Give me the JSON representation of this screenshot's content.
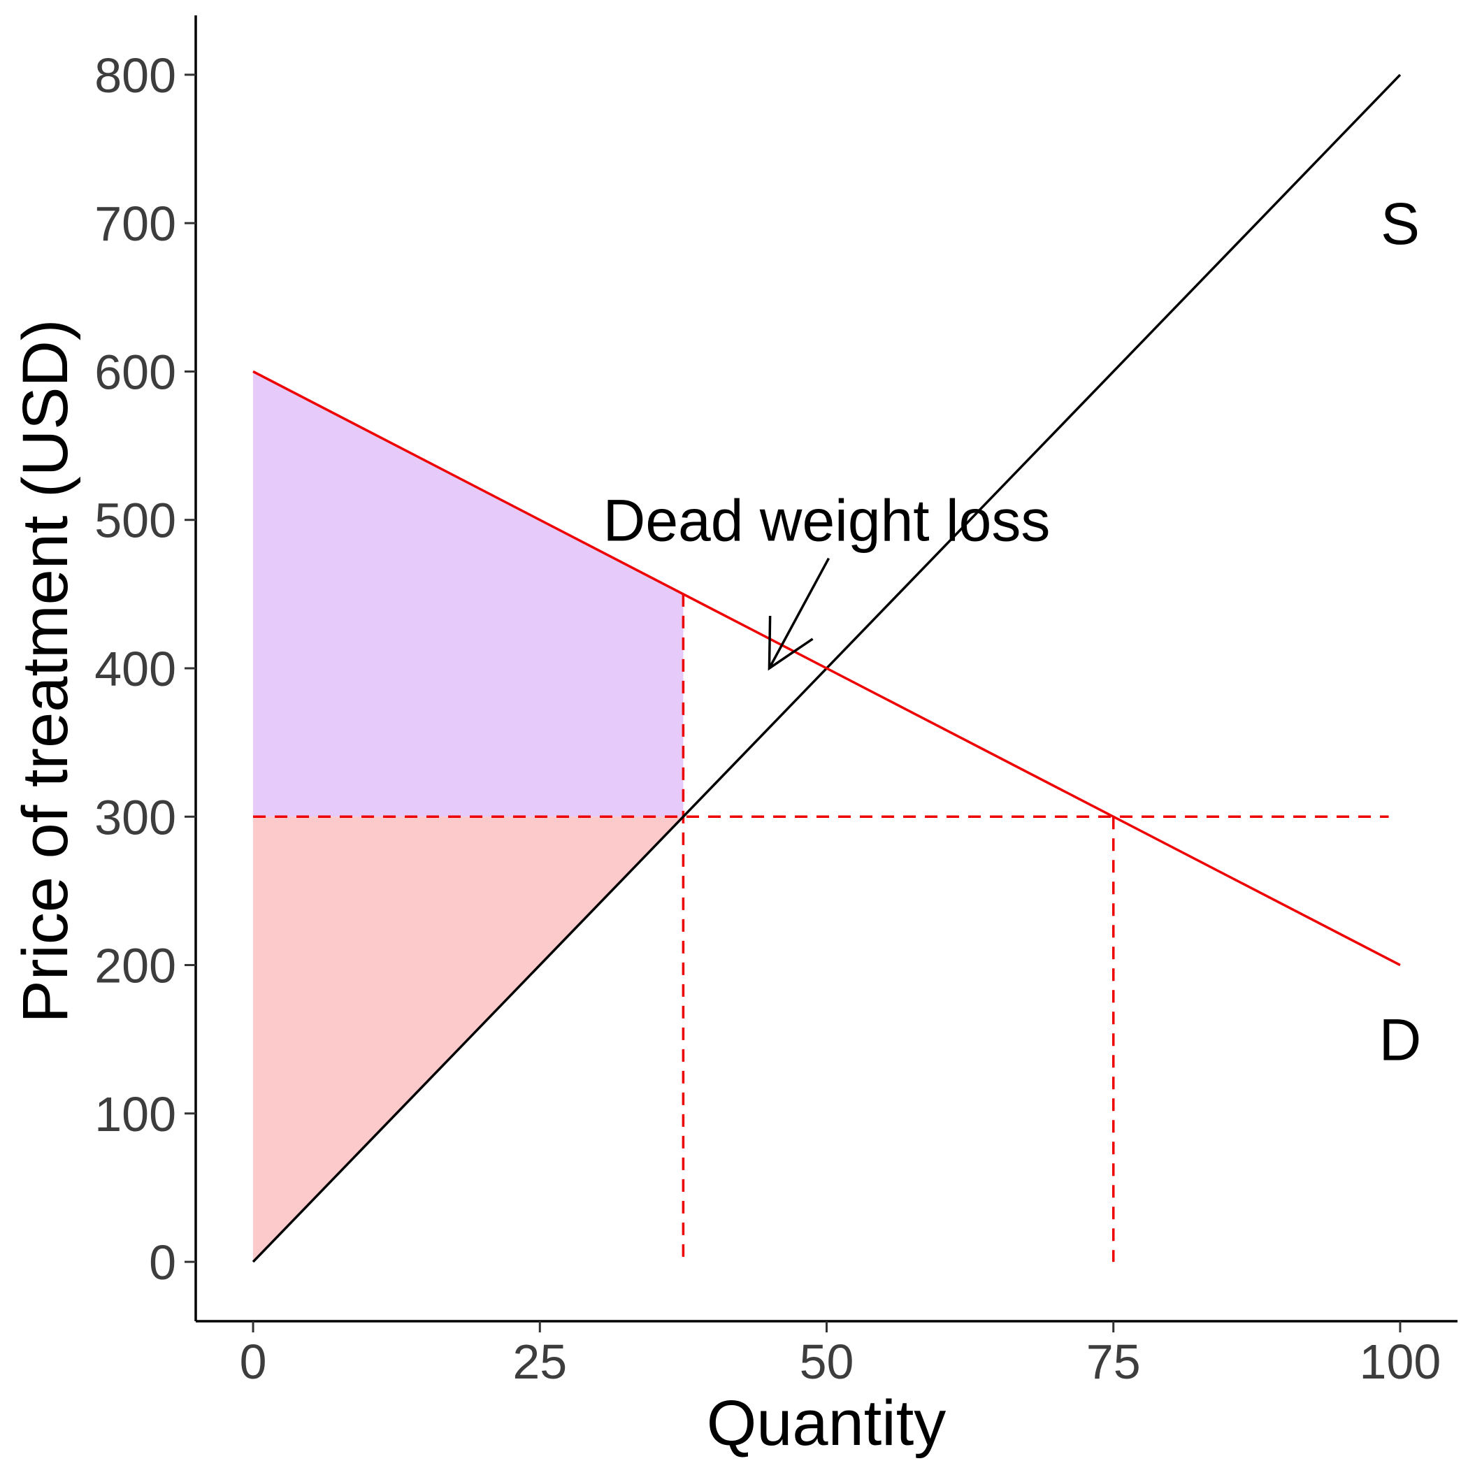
{
  "chart_data": {
    "type": "line",
    "xlabel": "Quantity",
    "ylabel": "Price of treatment (USD)",
    "xlim": [
      -5,
      105
    ],
    "ylim": [
      -40,
      840
    ],
    "x_ticks": [
      0,
      25,
      50,
      75,
      100
    ],
    "y_ticks": [
      0,
      100,
      200,
      300,
      400,
      500,
      600,
      700,
      800
    ],
    "x_tick_labels": [
      "0",
      "25",
      "50",
      "75",
      "100"
    ],
    "y_tick_labels": [
      "0",
      "100",
      "200",
      "300",
      "400",
      "500",
      "600",
      "700",
      "800"
    ],
    "grid": false,
    "series": [
      {
        "name": "S",
        "color": "#000000",
        "points": [
          [
            0,
            0
          ],
          [
            100,
            800
          ]
        ]
      },
      {
        "name": "D",
        "color": "#ee0000",
        "points": [
          [
            0,
            600
          ],
          [
            100,
            200
          ]
        ]
      }
    ],
    "shaded_regions": [
      {
        "color": "#e6cafa",
        "points": [
          [
            0,
            600
          ],
          [
            37.5,
            450
          ],
          [
            37.5,
            300
          ],
          [
            0,
            300
          ]
        ]
      },
      {
        "color": "#fccaca",
        "points": [
          [
            0,
            300
          ],
          [
            37.5,
            300
          ],
          [
            0,
            0
          ]
        ]
      }
    ],
    "reference_lines": [
      {
        "color": "#ee0000",
        "style": "dashed",
        "points": [
          [
            0,
            300
          ],
          [
            99,
            300
          ]
        ]
      },
      {
        "color": "#ee0000",
        "style": "dashed",
        "points": [
          [
            37.5,
            450
          ],
          [
            37.5,
            0
          ]
        ]
      },
      {
        "color": "#ee0000",
        "style": "dashed",
        "points": [
          [
            75,
            300
          ],
          [
            75,
            0
          ]
        ]
      }
    ],
    "annotations": [
      {
        "text": "Dead weight loss",
        "x": 50,
        "y": 500,
        "arrow_to": [
          45,
          400
        ]
      }
    ],
    "curve_labels": [
      {
        "text": "S",
        "x": 100,
        "y": 700
      },
      {
        "text": "D",
        "x": 100,
        "y": 150
      }
    ]
  }
}
